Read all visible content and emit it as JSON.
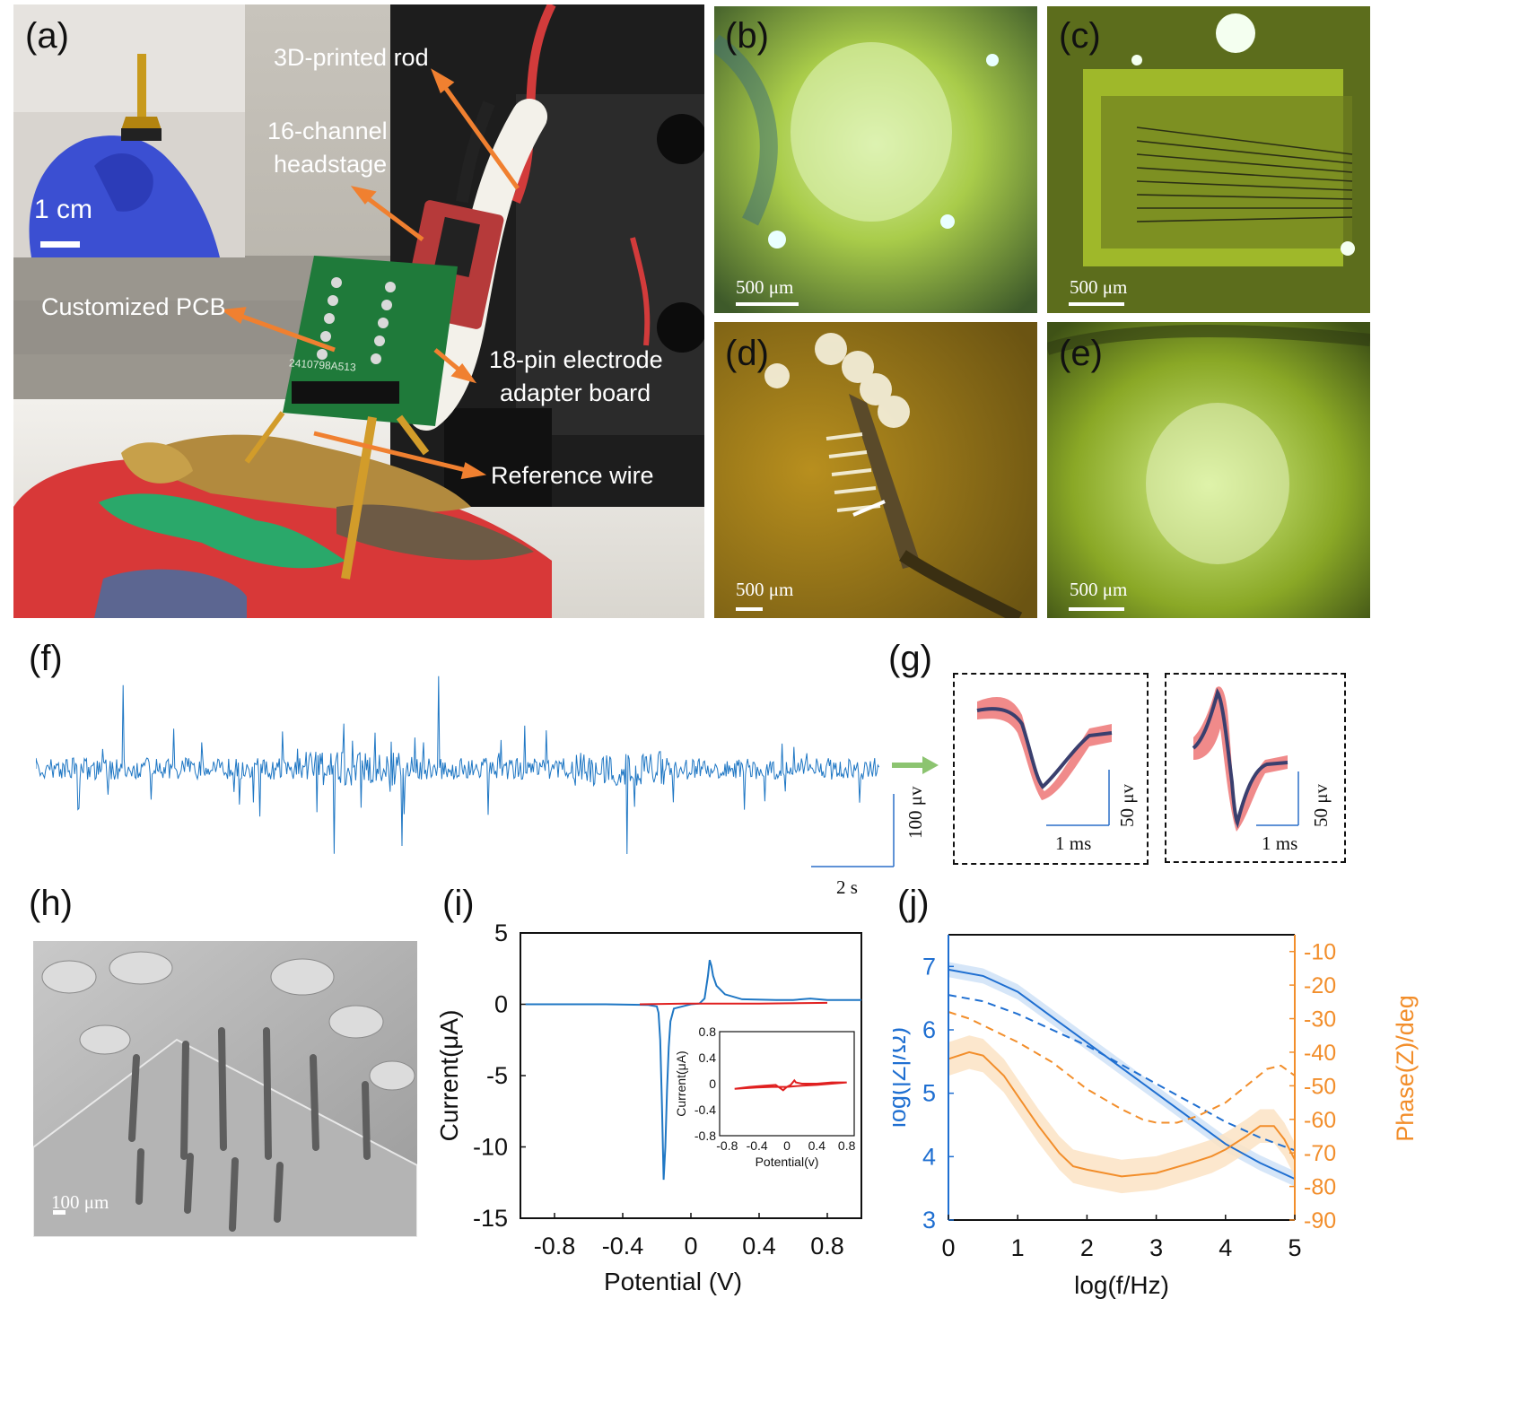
{
  "panels": {
    "a": "(a)",
    "b": "(b)",
    "c": "(c)",
    "d": "(d)",
    "e": "(e)",
    "f": "(f)",
    "g": "(g)",
    "h": "(h)",
    "i": "(i)",
    "j": "(j)"
  },
  "panel_a": {
    "inset_scale": "1 cm",
    "labels": {
      "rod": "3D-printed rod",
      "headstage_line1": "16-channel",
      "headstage_line2": "headstage",
      "pcb": "Customized PCB",
      "adapter_line1": "18-pin electrode",
      "adapter_line2": "adapter board",
      "reference": "Reference wire"
    },
    "pcb_text": "2410798A513"
  },
  "scale_bars": {
    "b": "500 μm",
    "c": "500 μm",
    "d": "500 μm",
    "e": "500 μm",
    "h": "100 μm"
  },
  "panel_f": {
    "scale_y": "100 μv",
    "scale_x": "2 s"
  },
  "panel_g": {
    "scale_y_1": "50 μv",
    "scale_x_1": "1 ms",
    "scale_y_2": "50 μv",
    "scale_x_2": "1 ms"
  },
  "colors": {
    "trace_blue": "#1f77c4",
    "ribbon_red": "#f08a8a",
    "mean_navy": "#3a3f6e",
    "orange": "#f28e2b",
    "orange_band": "#fbe3c4"
  },
  "chart_data": [
    {
      "id": "cv",
      "type": "line",
      "xlabel": "Potential  (V)",
      "ylabel": "Current(μA)",
      "xlim": [
        -1.0,
        1.0
      ],
      "ylim": [
        -15,
        5
      ],
      "xticks": [
        "-0.8",
        "-0.4",
        "0",
        "0.4",
        "0.8"
      ],
      "yticks": [
        "5",
        "0",
        "-5",
        "-10",
        "-15"
      ],
      "series": [
        {
          "color": "#1f77c4",
          "x": [
            -0.97,
            -0.5,
            -0.25,
            -0.2,
            -0.19,
            -0.18,
            -0.17,
            -0.16,
            -0.15,
            -0.14,
            -0.13,
            -0.12,
            -0.1,
            0.0,
            0.05,
            0.08,
            0.1,
            0.11,
            0.12,
            0.13,
            0.15,
            0.2,
            0.3,
            0.5,
            0.6,
            0.7,
            0.8,
            0.9,
            1.0
          ],
          "y": [
            0.0,
            0.0,
            -0.05,
            -0.15,
            -0.6,
            -2.5,
            -7.0,
            -12.3,
            -10.0,
            -6.0,
            -3.0,
            -1.2,
            -0.3,
            0.0,
            0.05,
            0.4,
            2.0,
            3.1,
            2.7,
            2.0,
            1.3,
            0.7,
            0.35,
            0.3,
            0.3,
            0.4,
            0.3,
            0.3,
            0.3
          ]
        },
        {
          "color": "#e02020",
          "x": [
            -0.3,
            0.0,
            0.4,
            0.8
          ],
          "y": [
            0.0,
            0.05,
            0.05,
            0.1
          ]
        }
      ],
      "inset": {
        "xlabel": "Potential(v)",
        "ylabel": "Current(μA)",
        "xlim": [
          -0.9,
          0.9
        ],
        "ylim": [
          -0.8,
          0.8
        ],
        "xticks": [
          "-0.8",
          "-0.4",
          "0",
          "0.4",
          "0.8"
        ],
        "yticks": [
          "0.8",
          "0.4",
          "0",
          "-0.4",
          "-0.8"
        ],
        "series": [
          {
            "color": "#e02020",
            "x": [
              -0.7,
              -0.5,
              -0.3,
              -0.15,
              -0.05,
              0.0,
              0.05,
              0.1,
              0.12,
              0.2,
              0.4,
              0.6,
              0.8,
              0.6,
              0.4,
              0.2,
              0.0,
              -0.2,
              -0.4,
              -0.7
            ],
            "y": [
              -0.08,
              -0.05,
              -0.03,
              -0.02,
              -0.1,
              -0.05,
              -0.02,
              0.05,
              0.02,
              0.0,
              0.0,
              0.02,
              0.02,
              0.0,
              -0.02,
              -0.03,
              -0.05,
              -0.05,
              -0.06,
              -0.08
            ]
          }
        ]
      }
    },
    {
      "id": "eis",
      "type": "line",
      "xlabel": "log(f/Hz)",
      "ylabel_left": "log(|Z|/Ω)",
      "ylabel_right": "Phase(Z)/deg",
      "xlim": [
        0,
        5
      ],
      "ylim_left": [
        3,
        7.5
      ],
      "ylim_right": [
        -90,
        -5
      ],
      "xticks": [
        "0",
        "1",
        "2",
        "3",
        "4",
        "5"
      ],
      "yticks_left": [
        "3",
        "4",
        "5",
        "6",
        "7"
      ],
      "yticks_right": [
        "-10",
        "-20",
        "-30",
        "-40",
        "-50",
        "-60",
        "-70",
        "-80",
        "-90"
      ],
      "series": [
        {
          "axis": "left",
          "color": "#1f6fd1",
          "dash": false,
          "band": 0.12,
          "x": [
            0,
            0.5,
            1,
            1.5,
            2,
            2.5,
            3,
            3.5,
            4,
            4.5,
            5
          ],
          "y": [
            6.95,
            6.85,
            6.6,
            6.2,
            5.8,
            5.4,
            5.0,
            4.6,
            4.2,
            3.9,
            3.65
          ]
        },
        {
          "axis": "left",
          "color": "#1f6fd1",
          "dash": true,
          "band": 0,
          "x": [
            0,
            0.5,
            1,
            1.5,
            2,
            2.5,
            3,
            3.5,
            4,
            4.5,
            5
          ],
          "y": [
            6.55,
            6.45,
            6.25,
            6.0,
            5.75,
            5.45,
            5.15,
            4.85,
            4.55,
            4.3,
            4.1
          ]
        },
        {
          "axis": "right",
          "color": "#f28e2b",
          "dash": false,
          "band": 5,
          "x": [
            0,
            0.3,
            0.5,
            0.8,
            1.0,
            1.3,
            1.6,
            1.8,
            2.0,
            2.5,
            3.0,
            3.5,
            3.8,
            4.0,
            4.3,
            4.5,
            4.7,
            4.85,
            5.0
          ],
          "y": [
            -42,
            -40,
            -41,
            -47,
            -53,
            -62,
            -70,
            -74,
            -75,
            -77,
            -76,
            -73,
            -71,
            -69,
            -65,
            -62,
            -62,
            -66,
            -72
          ]
        },
        {
          "axis": "right",
          "color": "#f28e2b",
          "dash": true,
          "band": 0,
          "x": [
            0,
            0.3,
            0.5,
            1.0,
            1.5,
            2.0,
            2.5,
            2.8,
            3.0,
            3.3,
            3.6,
            4.0,
            4.3,
            4.6,
            4.8,
            5.0
          ],
          "y": [
            -28,
            -30,
            -32,
            -37,
            -43,
            -51,
            -57,
            -60,
            -61,
            -61,
            -59,
            -55,
            -50,
            -45,
            -44,
            -47
          ]
        }
      ]
    }
  ]
}
